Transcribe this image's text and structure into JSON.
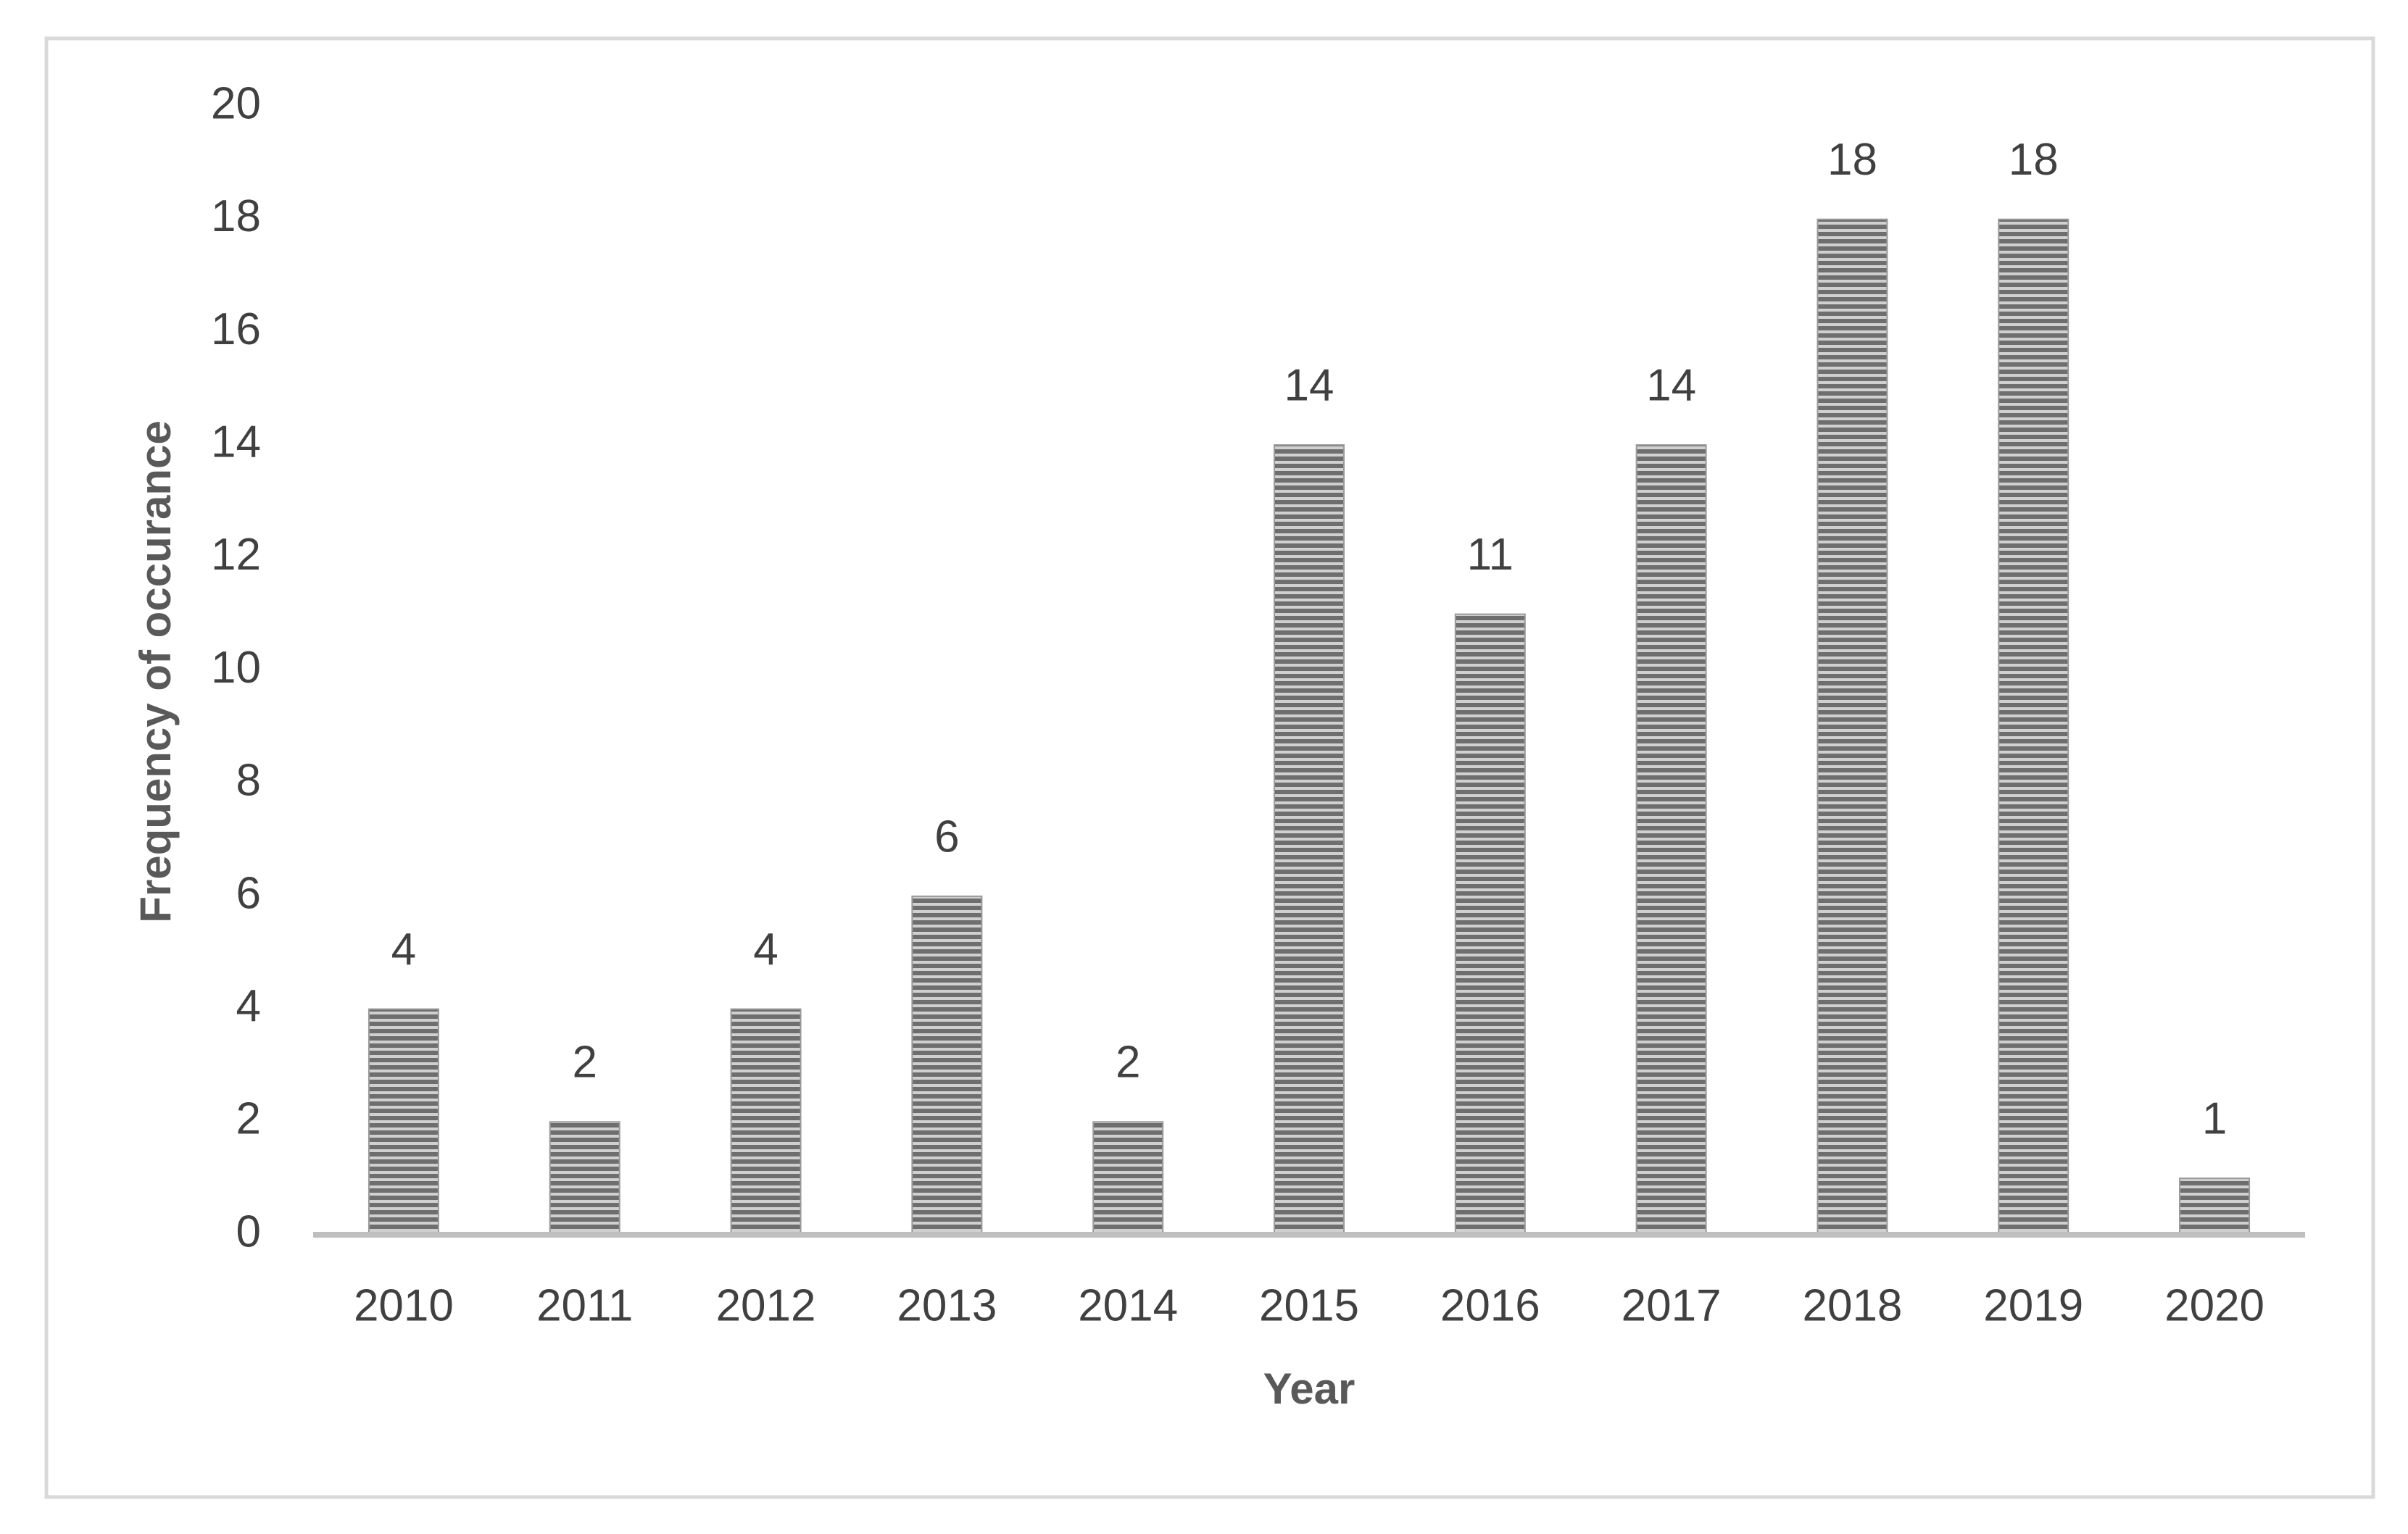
{
  "chart_data": {
    "type": "bar",
    "x_label": "Year",
    "y_label": "Frequency of occurance",
    "categories": [
      "2010",
      "2011",
      "2012",
      "2013",
      "2014",
      "2015",
      "2016",
      "2017",
      "2018",
      "2019",
      "2020"
    ],
    "values": [
      4,
      2,
      4,
      6,
      2,
      14,
      11,
      14,
      18,
      18,
      1
    ],
    "color": "#6e6e6e",
    "ylim": [
      0,
      20
    ],
    "yticks": [
      0,
      2,
      4,
      6,
      8,
      10,
      12,
      14,
      16,
      18,
      20
    ],
    "grid": false
  }
}
